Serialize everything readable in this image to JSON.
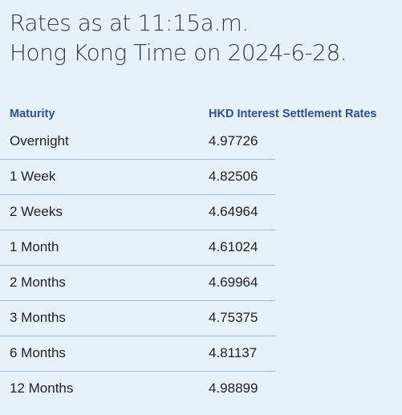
{
  "heading": {
    "line1": "Rates as at 11:15a.m.",
    "line2": "Hong Kong Time on 2024-6-28."
  },
  "table": {
    "headers": {
      "maturity": "Maturity",
      "rate": "HKD Interest Settlement Rates"
    },
    "rows": [
      {
        "maturity": "Overnight",
        "rate": "4.97726"
      },
      {
        "maturity": "1 Week",
        "rate": "4.82506"
      },
      {
        "maturity": "2 Weeks",
        "rate": "4.64964"
      },
      {
        "maturity": "1 Month",
        "rate": "4.61024"
      },
      {
        "maturity": "2 Months",
        "rate": "4.69964"
      },
      {
        "maturity": "3 Months",
        "rate": "4.75375"
      },
      {
        "maturity": "6 Months",
        "rate": "4.81137"
      },
      {
        "maturity": "12 Months",
        "rate": "4.98899"
      }
    ]
  },
  "colors": {
    "background": "#e7f1f9",
    "header_text": "#2c4e9e",
    "divider": "#9cc2df"
  }
}
